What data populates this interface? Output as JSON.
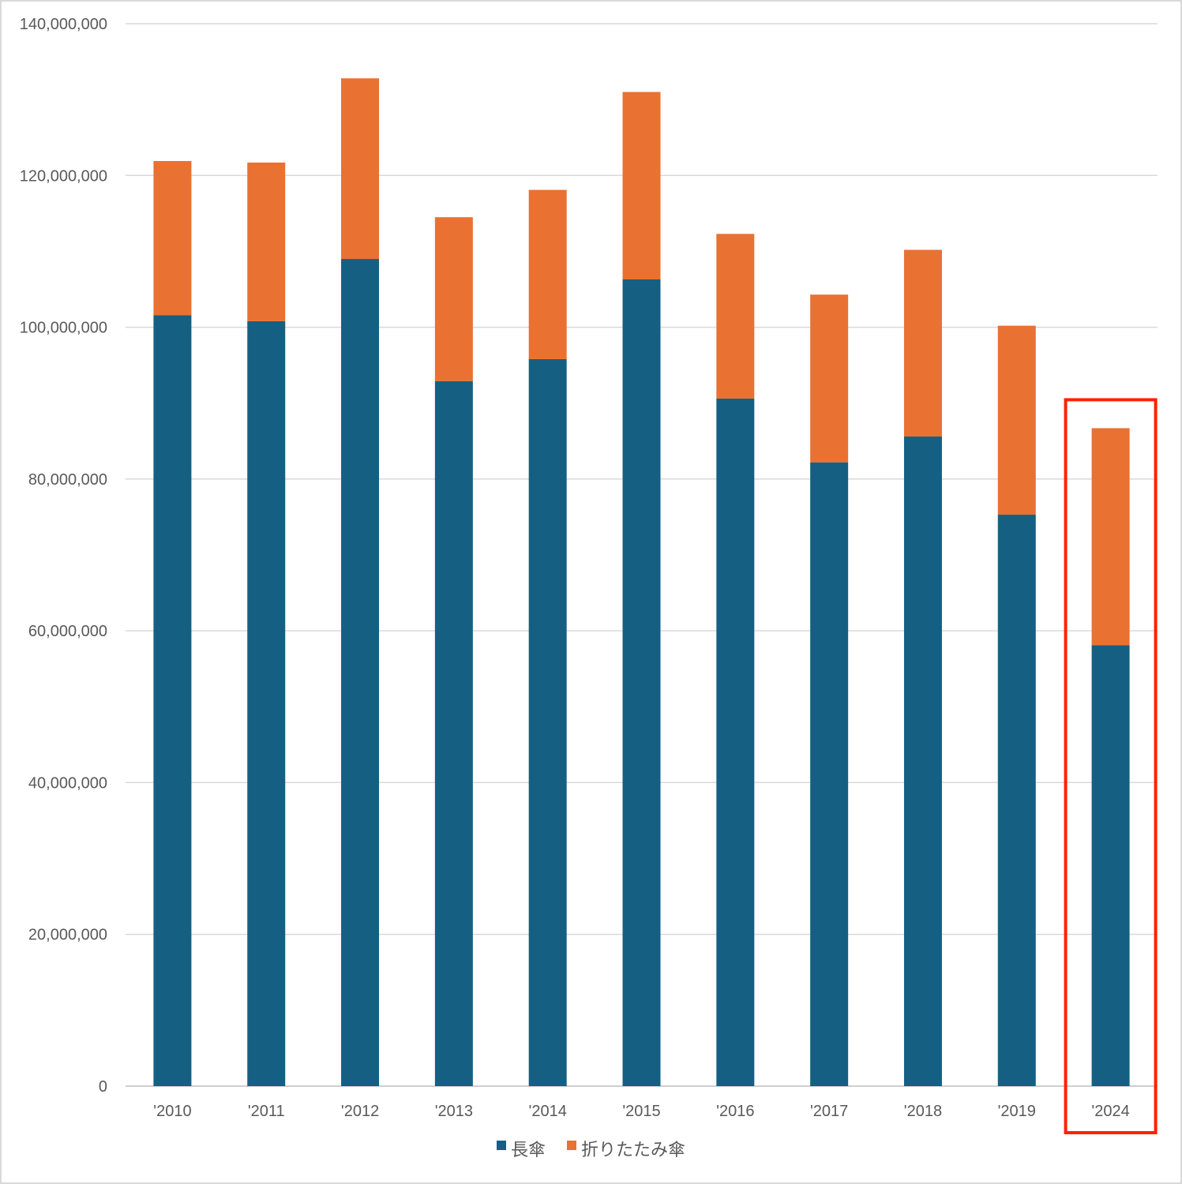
{
  "chart_data": {
    "type": "bar",
    "stacked": true,
    "title": "",
    "xlabel": "",
    "ylabel": "",
    "categories": [
      "'2010",
      "'2011",
      "'2012",
      "'2013",
      "'2014",
      "'2015",
      "'2016",
      "'2017",
      "'2018",
      "'2019",
      "'2024"
    ],
    "series": [
      {
        "name": "長傘",
        "color": "#156082",
        "values": [
          101600000,
          100800000,
          109000000,
          92900000,
          95800000,
          106300000,
          90600000,
          82200000,
          85600000,
          75300000,
          58100000
        ]
      },
      {
        "name": "折りたたみ傘",
        "color": "#E97132",
        "values": [
          20300000,
          20900000,
          23800000,
          21600000,
          22300000,
          24700000,
          21700000,
          22100000,
          24600000,
          24900000,
          28600000
        ]
      }
    ],
    "ylim": [
      0,
      140000000
    ],
    "yticks": [
      0,
      20000000,
      40000000,
      60000000,
      80000000,
      100000000,
      120000000,
      140000000
    ],
    "ytick_labels": [
      "0",
      "20,000,000",
      "40,000,000",
      "60,000,000",
      "80,000,000",
      "100,000,000",
      "120,000,000",
      "140,000,000"
    ],
    "grid": true,
    "legend_position": "bottom",
    "highlight": {
      "category": "'2024",
      "color": "#FF2000"
    }
  }
}
